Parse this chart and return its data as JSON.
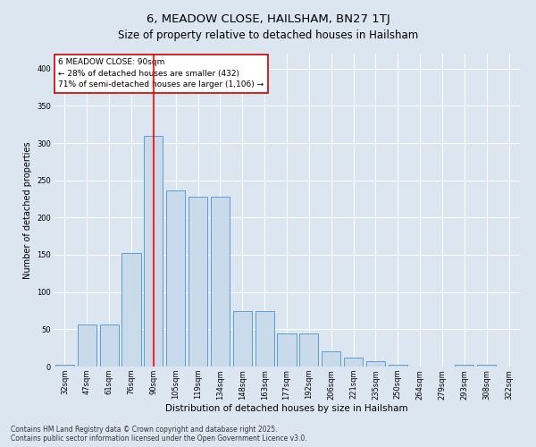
{
  "title": "6, MEADOW CLOSE, HAILSHAM, BN27 1TJ",
  "subtitle": "Size of property relative to detached houses in Hailsham",
  "xlabel": "Distribution of detached houses by size in Hailsham",
  "ylabel": "Number of detached properties",
  "categories": [
    "32sqm",
    "47sqm",
    "61sqm",
    "76sqm",
    "90sqm",
    "105sqm",
    "119sqm",
    "134sqm",
    "148sqm",
    "163sqm",
    "177sqm",
    "192sqm",
    "206sqm",
    "221sqm",
    "235sqm",
    "250sqm",
    "264sqm",
    "279sqm",
    "293sqm",
    "308sqm",
    "322sqm"
  ],
  "values": [
    2,
    57,
    57,
    152,
    310,
    237,
    228,
    228,
    75,
    75,
    45,
    45,
    20,
    12,
    7,
    2,
    0,
    0,
    2,
    2,
    0
  ],
  "bar_color": "#c9daea",
  "bar_edge_color": "#5b9bd5",
  "redline_index": 4,
  "redline_label": "6 MEADOW CLOSE: 90sqm",
  "annotation_line1": "← 28% of detached houses are smaller (432)",
  "annotation_line2": "71% of semi-detached houses are larger (1,106) →",
  "annotation_box_facecolor": "#ffffff",
  "annotation_box_edgecolor": "#cc0000",
  "ylim": [
    0,
    420
  ],
  "yticks": [
    0,
    50,
    100,
    150,
    200,
    250,
    300,
    350,
    400
  ],
  "bg_color": "#dce6f1",
  "plot_bg_color": "#dce6f1",
  "footer": "Contains HM Land Registry data © Crown copyright and database right 2025.\nContains public sector information licensed under the Open Government Licence v3.0.",
  "title_fontsize": 9.5,
  "xlabel_fontsize": 7.5,
  "ylabel_fontsize": 7,
  "tick_fontsize": 6,
  "annotation_fontsize": 6.5,
  "footer_fontsize": 5.5,
  "grid_color": "#ffffff",
  "grid_linewidth": 0.7
}
